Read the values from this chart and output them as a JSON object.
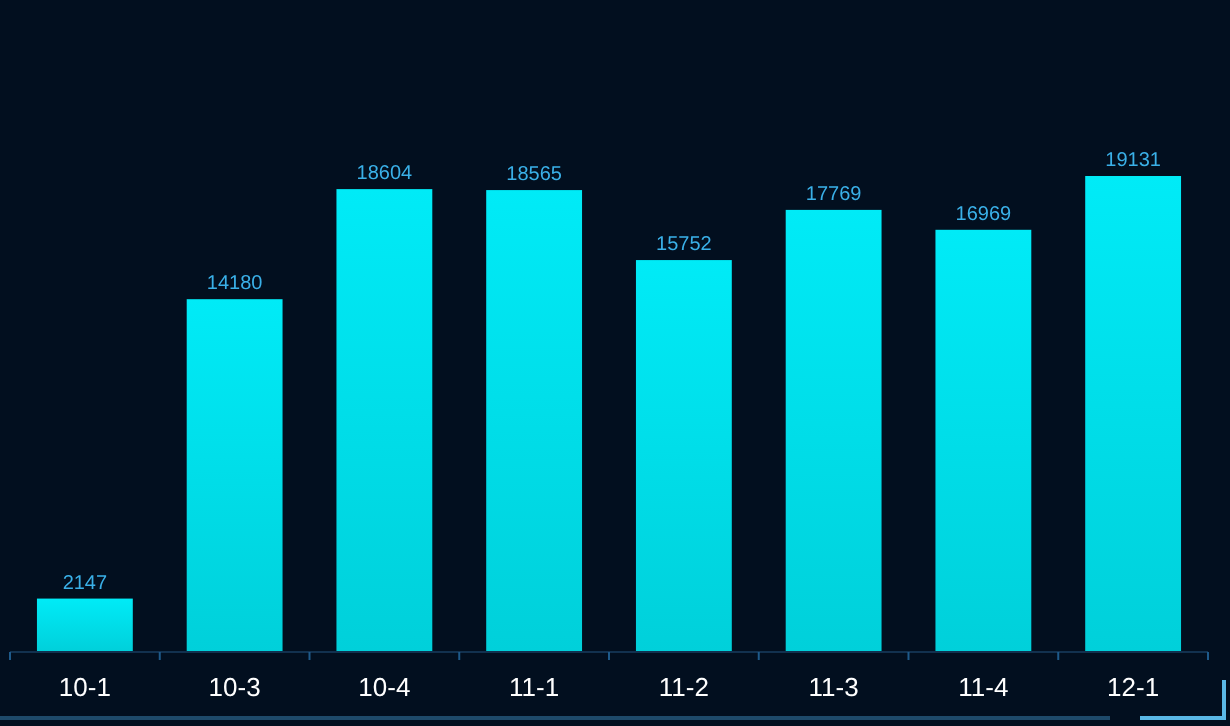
{
  "chart_data": {
    "type": "bar",
    "categories": [
      "10-1",
      "10-3",
      "10-4",
      "11-1",
      "11-2",
      "11-3",
      "11-4",
      "12-1"
    ],
    "values": [
      2147,
      14180,
      18604,
      18565,
      15752,
      17769,
      16969,
      19131
    ],
    "color": "#00dfea",
    "data_labels": true
  }
}
